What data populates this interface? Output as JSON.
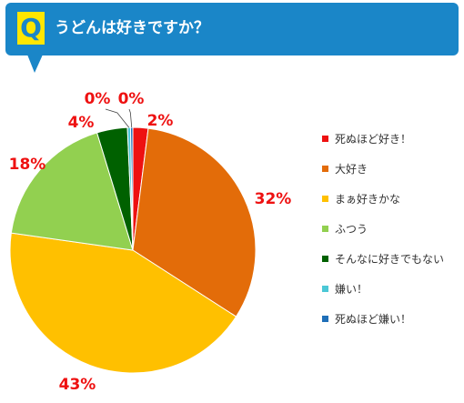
{
  "header": {
    "q_mark": "Q",
    "question": "うどんは好きですか？",
    "bar_color": "#1a86c8",
    "mark_color": "#ffe600"
  },
  "chart_data": {
    "type": "pie",
    "title": "",
    "label_color": "#ee1111",
    "legend_position": "right",
    "slices": [
      {
        "label": "死ぬほど好き！",
        "value": 2,
        "display": "2%",
        "color": "#ee1111"
      },
      {
        "label": "大好き",
        "value": 32,
        "display": "32%",
        "color": "#e36c09"
      },
      {
        "label": "まぁ好きかな",
        "value": 43,
        "display": "43%",
        "color": "#ffc000"
      },
      {
        "label": "ふつう",
        "value": 18,
        "display": "18%",
        "color": "#92d050"
      },
      {
        "label": "そんなに好きでもない",
        "value": 4,
        "display": "4%",
        "color": "#006100"
      },
      {
        "label": "嫌い！",
        "value": 0.4,
        "display": "0%",
        "color": "#4bc8d6"
      },
      {
        "label": "死ぬほど嫌い！",
        "value": 0.3,
        "display": "0%",
        "color": "#1f6fb8"
      }
    ]
  }
}
